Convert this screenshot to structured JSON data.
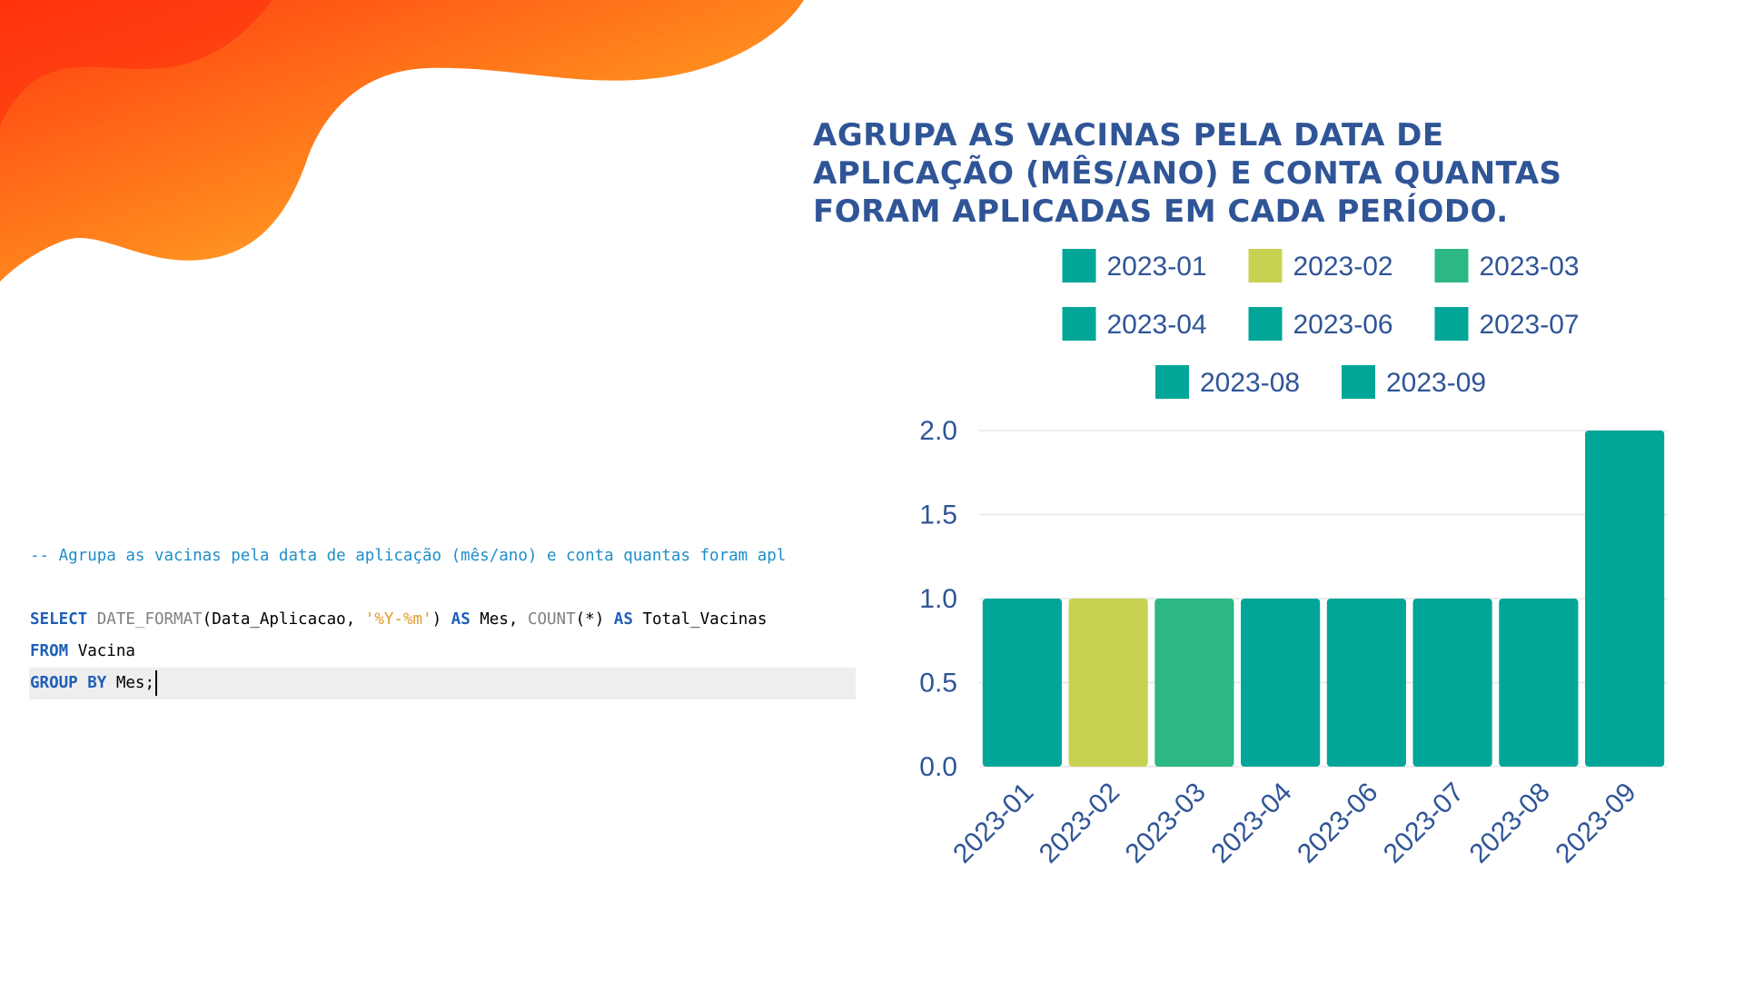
{
  "header": {
    "title_lines": [
      "AGRUPA AS VACINAS PELA DATA DE",
      "APLICAÇÃO (MÊS/ANO) E CONTA QUANTAS",
      "FORAM APLICADAS EM CADA PERÍODO."
    ]
  },
  "code": {
    "comment": "-- Agrupa as vacinas pela data de aplicação (mês/ano) e conta quantas foram apl",
    "select_kw": "SELECT",
    "date_format_fn": "DATE_FORMAT",
    "date_format_arg": "(Data_Aplicacao, ",
    "format_str": "'%Y-%m'",
    "close_paren": ")",
    "as_kw_1": "AS",
    "mes_alias": " Mes, ",
    "count_fn": "COUNT",
    "count_arg": "(*)",
    "as_kw_2": "AS",
    "total_alias": " Total_Vacinas",
    "from_kw": "FROM",
    "table_name": " Vacina",
    "group_kw": "GROUP BY",
    "group_col": " Mes;"
  },
  "colors": {
    "teal": "#02a699",
    "yellow_green": "#c8d251",
    "green": "#2bb882",
    "axis_text": "#2f5597",
    "grid": "#e6e6e6"
  },
  "chart_data": {
    "type": "bar",
    "categories": [
      "2023-01",
      "2023-02",
      "2023-03",
      "2023-04",
      "2023-06",
      "2023-07",
      "2023-08",
      "2023-09"
    ],
    "values": [
      1,
      1,
      1,
      1,
      1,
      1,
      1,
      2
    ],
    "bar_colors": [
      "#02a699",
      "#c8d251",
      "#2bb882",
      "#02a699",
      "#02a699",
      "#02a699",
      "#02a699",
      "#02a699"
    ],
    "legend": [
      {
        "label": "2023-01",
        "color": "#02a699"
      },
      {
        "label": "2023-02",
        "color": "#c8d251"
      },
      {
        "label": "2023-03",
        "color": "#2bb882"
      },
      {
        "label": "2023-04",
        "color": "#02a699"
      },
      {
        "label": "2023-06",
        "color": "#02a699"
      },
      {
        "label": "2023-07",
        "color": "#02a699"
      },
      {
        "label": "2023-08",
        "color": "#02a699"
      },
      {
        "label": "2023-09",
        "color": "#02a699"
      }
    ],
    "ylim": [
      0,
      2
    ],
    "yticks": [
      "0.0",
      "0.5",
      "1.0",
      "1.5",
      "2.0"
    ],
    "ytick_values": [
      0,
      0.5,
      1,
      1.5,
      2
    ],
    "grid": true,
    "legend_position": "top"
  }
}
